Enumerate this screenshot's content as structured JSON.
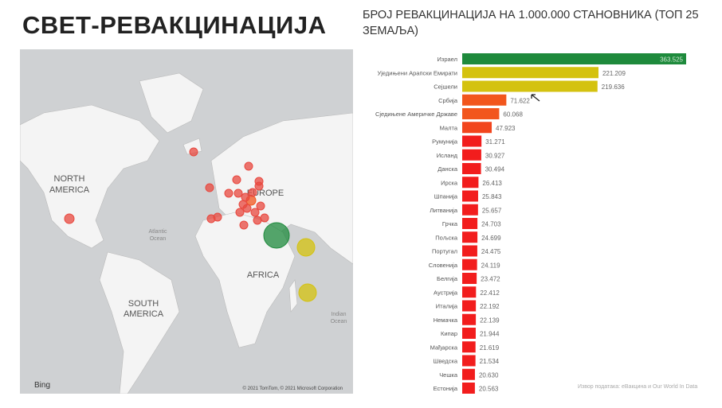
{
  "page_title": "СВЕТ-РЕВАКЦИНАЦИЈА",
  "map": {
    "labels": {
      "north_america": [
        "NORTH",
        "AMERICA"
      ],
      "south_america": [
        "SOUTH",
        "AMERICA"
      ],
      "europe": "EUROPE",
      "africa": "AFRICA",
      "atlantic": [
        "Atlantic",
        "Ocean"
      ],
      "indian": [
        "Indian",
        "Ocean"
      ]
    },
    "logo": "Bing",
    "copyright": "© 2021 TomTom, © 2021 Microsoft Corporation"
  },
  "chart_data": {
    "type": "bar",
    "orientation": "horizontal",
    "title": "БРОЈ РЕВАКЦИНАЦИЈА НА 1.000.000 СТАНОВНИКА (ТОП 25 ЗЕМАЉА)",
    "categories": [
      "Израел",
      "Уједињени Арапски Емирати",
      "Сејшели",
      "Србија",
      "Сједињене Америчке Државе",
      "Малта",
      "Румунија",
      "Исланд",
      "Данска",
      "Ирска",
      "Шпанија",
      "Литванија",
      "Грчка",
      "Пољска",
      "Португал",
      "Словенија",
      "Белгија",
      "Аустрија",
      "Италија",
      "Немачка",
      "Кипар",
      "Мађарска",
      "Шведска",
      "Чешка",
      "Естонија"
    ],
    "values": [
      363525,
      221209,
      219636,
      71622,
      60068,
      47923,
      31271,
      30927,
      30494,
      26413,
      25843,
      25657,
      24703,
      24699,
      24475,
      24119,
      23472,
      22412,
      22192,
      22139,
      21944,
      21619,
      21534,
      20630,
      20563
    ],
    "labels": [
      "363.525",
      "221.209",
      "219.636",
      "71.622",
      "60.068",
      "47.923",
      "31.271",
      "30.927",
      "30.494",
      "26.413",
      "25.843",
      "25.657",
      "24.703",
      "24.699",
      "24.475",
      "24.119",
      "23.472",
      "22.412",
      "22.192",
      "22.139",
      "21.944",
      "21.619",
      "21.534",
      "20.630",
      "20.563"
    ],
    "colors": [
      "#1e8a3c",
      "#d4c20f",
      "#d4c20f",
      "#f2561d",
      "#f2561d",
      "#f2451d",
      "#f21d1d",
      "#f21d1d",
      "#f21d1d",
      "#f21d1d",
      "#f21d1d",
      "#f21d1d",
      "#f21d1d",
      "#f21d1d",
      "#f21d1d",
      "#f21d1d",
      "#f21d1d",
      "#f21d1d",
      "#f21d1d",
      "#f21d1d",
      "#f21d1d",
      "#f21d1d",
      "#f21d1d",
      "#f21d1d",
      "#f21d1d"
    ],
    "xlim": [
      0,
      363525
    ],
    "source": "Извор података: еВакцина и Our World In Data"
  }
}
